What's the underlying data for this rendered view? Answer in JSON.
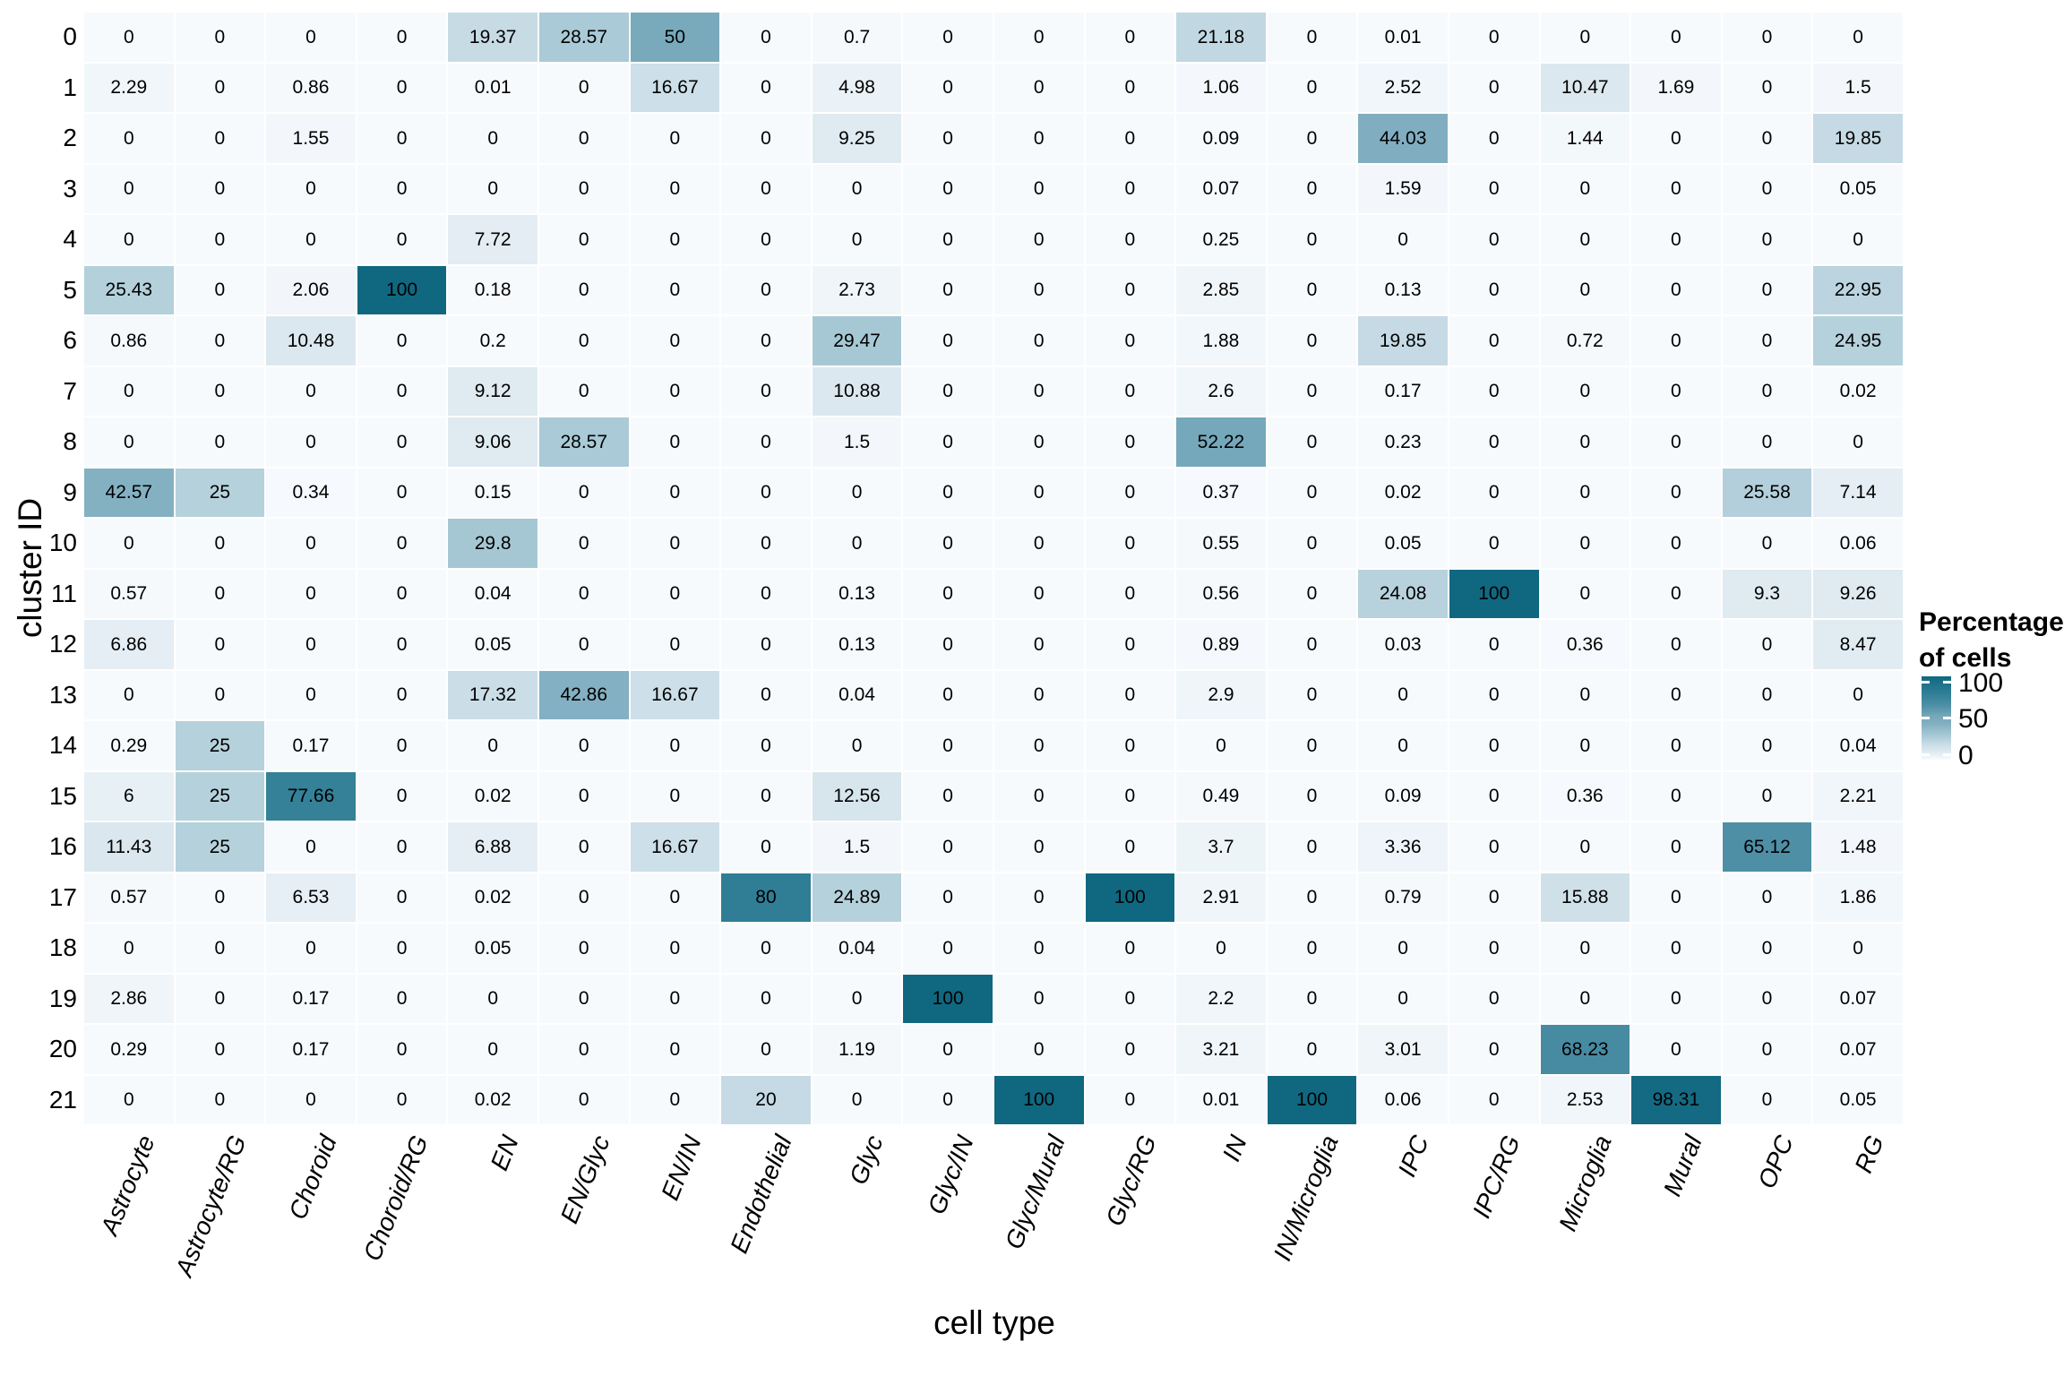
{
  "chart_data": {
    "type": "heatmap",
    "title": "",
    "xlabel": "cell type",
    "ylabel": "cluster ID",
    "x_categories": [
      "Astrocyte",
      "Astrocyte/RG",
      "Choroid",
      "Choroid/RG",
      "EN",
      "EN/Glyc",
      "EN/IN",
      "Endothelial",
      "Glyc",
      "Glyc/IN",
      "Glyc/Mural",
      "Glyc/RG",
      "IN",
      "IN/Microglia",
      "IPC",
      "IPC/RG",
      "Microglia",
      "Mural",
      "OPC",
      "RG"
    ],
    "y_categories": [
      "0",
      "1",
      "2",
      "3",
      "4",
      "5",
      "6",
      "7",
      "8",
      "9",
      "10",
      "11",
      "12",
      "13",
      "14",
      "15",
      "16",
      "17",
      "18",
      "19",
      "20",
      "21"
    ],
    "values": [
      [
        0,
        0,
        0,
        0,
        19.37,
        28.57,
        50,
        0,
        0.7,
        0,
        0,
        0,
        21.18,
        0,
        0.01,
        0,
        0,
        0,
        0,
        0
      ],
      [
        2.29,
        0,
        0.86,
        0,
        0.01,
        0,
        16.67,
        0,
        4.98,
        0,
        0,
        0,
        1.06,
        0,
        2.52,
        0,
        10.47,
        1.69,
        0,
        1.5
      ],
      [
        0,
        0,
        1.55,
        0,
        0,
        0,
        0,
        0,
        9.25,
        0,
        0,
        0,
        0.09,
        0,
        44.03,
        0,
        1.44,
        0,
        0,
        19.85
      ],
      [
        0,
        0,
        0,
        0,
        0,
        0,
        0,
        0,
        0,
        0,
        0,
        0,
        0.07,
        0,
        1.59,
        0,
        0,
        0,
        0,
        0.05
      ],
      [
        0,
        0,
        0,
        0,
        7.72,
        0,
        0,
        0,
        0,
        0,
        0,
        0,
        0.25,
        0,
        0,
        0,
        0,
        0,
        0,
        0
      ],
      [
        25.43,
        0,
        2.06,
        100,
        0.18,
        0,
        0,
        0,
        2.73,
        0,
        0,
        0,
        2.85,
        0,
        0.13,
        0,
        0,
        0,
        0,
        22.95
      ],
      [
        0.86,
        0,
        10.48,
        0,
        0.2,
        0,
        0,
        0,
        29.47,
        0,
        0,
        0,
        1.88,
        0,
        19.85,
        0,
        0.72,
        0,
        0,
        24.95
      ],
      [
        0,
        0,
        0,
        0,
        9.12,
        0,
        0,
        0,
        10.88,
        0,
        0,
        0,
        2.6,
        0,
        0.17,
        0,
        0,
        0,
        0,
        0.02
      ],
      [
        0,
        0,
        0,
        0,
        9.06,
        28.57,
        0,
        0,
        1.5,
        0,
        0,
        0,
        52.22,
        0,
        0.23,
        0,
        0,
        0,
        0,
        0
      ],
      [
        42.57,
        25,
        0.34,
        0,
        0.15,
        0,
        0,
        0,
        0,
        0,
        0,
        0,
        0.37,
        0,
        0.02,
        0,
        0,
        0,
        25.58,
        7.14
      ],
      [
        0,
        0,
        0,
        0,
        29.8,
        0,
        0,
        0,
        0,
        0,
        0,
        0,
        0.55,
        0,
        0.05,
        0,
        0,
        0,
        0,
        0.06
      ],
      [
        0.57,
        0,
        0,
        0,
        0.04,
        0,
        0,
        0,
        0.13,
        0,
        0,
        0,
        0.56,
        0,
        24.08,
        100,
        0,
        0,
        9.3,
        9.26
      ],
      [
        6.86,
        0,
        0,
        0,
        0.05,
        0,
        0,
        0,
        0.13,
        0,
        0,
        0,
        0.89,
        0,
        0.03,
        0,
        0.36,
        0,
        0,
        8.47
      ],
      [
        0,
        0,
        0,
        0,
        17.32,
        42.86,
        16.67,
        0,
        0.04,
        0,
        0,
        0,
        2.9,
        0,
        0,
        0,
        0,
        0,
        0,
        0
      ],
      [
        0.29,
        25,
        0.17,
        0,
        0,
        0,
        0,
        0,
        0,
        0,
        0,
        0,
        0,
        0,
        0,
        0,
        0,
        0,
        0,
        0.04
      ],
      [
        6,
        25,
        77.66,
        0,
        0.02,
        0,
        0,
        0,
        12.56,
        0,
        0,
        0,
        0.49,
        0,
        0.09,
        0,
        0.36,
        0,
        0,
        2.21
      ],
      [
        11.43,
        25,
        0,
        0,
        6.88,
        0,
        16.67,
        0,
        1.5,
        0,
        0,
        0,
        3.7,
        0,
        3.36,
        0,
        0,
        0,
        65.12,
        1.48
      ],
      [
        0.57,
        0,
        6.53,
        0,
        0.02,
        0,
        0,
        80,
        24.89,
        0,
        0,
        100,
        2.91,
        0,
        0.79,
        0,
        15.88,
        0,
        0,
        1.86
      ],
      [
        0,
        0,
        0,
        0,
        0.05,
        0,
        0,
        0,
        0.04,
        0,
        0,
        0,
        0,
        0,
        0,
        0,
        0,
        0,
        0,
        0
      ],
      [
        2.86,
        0,
        0.17,
        0,
        0,
        0,
        0,
        0,
        0,
        100,
        0,
        0,
        2.2,
        0,
        0,
        0,
        0,
        0,
        0,
        0.07
      ],
      [
        0.29,
        0,
        0.17,
        0,
        0,
        0,
        0,
        0,
        1.19,
        0,
        0,
        0,
        3.21,
        0,
        3.01,
        0,
        68.23,
        0,
        0,
        0.07
      ],
      [
        0,
        0,
        0,
        0,
        0.02,
        0,
        0,
        20,
        0,
        0,
        100,
        0,
        0.01,
        100,
        0.06,
        0,
        2.53,
        98.31,
        0,
        0.05
      ]
    ],
    "colorbar": {
      "title_line1": "Percentage",
      "title_line2": "of cells",
      "ticks": [
        "100",
        "50",
        "0"
      ],
      "range": [
        0,
        100
      ]
    },
    "colorscale_stops": [
      {
        "value": 0,
        "color": "#f7fafd"
      },
      {
        "value": 10,
        "color": "#dde9f0"
      },
      {
        "value": 20,
        "color": "#c5dae4"
      },
      {
        "value": 30,
        "color": "#a4c7d4"
      },
      {
        "value": 44,
        "color": "#80aec0"
      },
      {
        "value": 52,
        "color": "#76a8ba"
      },
      {
        "value": 65,
        "color": "#4e8fa6"
      },
      {
        "value": 80,
        "color": "#2f7e95"
      },
      {
        "value": 100,
        "color": "#106880"
      }
    ],
    "grid": false,
    "legend_position": "right"
  }
}
